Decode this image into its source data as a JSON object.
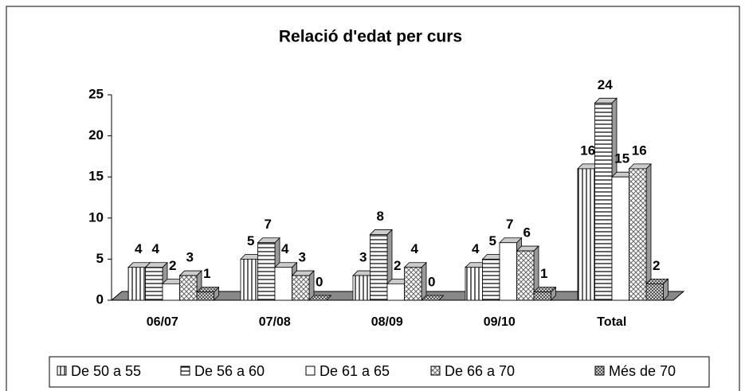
{
  "chart_data": {
    "type": "bar3d",
    "title": "Relació d'edat per curs",
    "categories": [
      "06/07",
      "07/08",
      "08/09",
      "09/10",
      "Total"
    ],
    "series": [
      {
        "name": "De 50 a 55",
        "values": [
          4,
          5,
          3,
          4,
          16
        ]
      },
      {
        "name": "De 56 a 60",
        "values": [
          4,
          7,
          8,
          5,
          24
        ]
      },
      {
        "name": "De 61 a 65",
        "values": [
          2,
          4,
          2,
          7,
          15
        ]
      },
      {
        "name": "De 66 a 70",
        "values": [
          3,
          3,
          4,
          6,
          16
        ]
      },
      {
        "name": "Més de 70",
        "values": [
          1,
          0,
          0,
          1,
          2
        ]
      }
    ],
    "ylim": [
      0,
      25
    ],
    "yticks": [
      0,
      5,
      10,
      15,
      20,
      25
    ],
    "legend": "bottom"
  }
}
